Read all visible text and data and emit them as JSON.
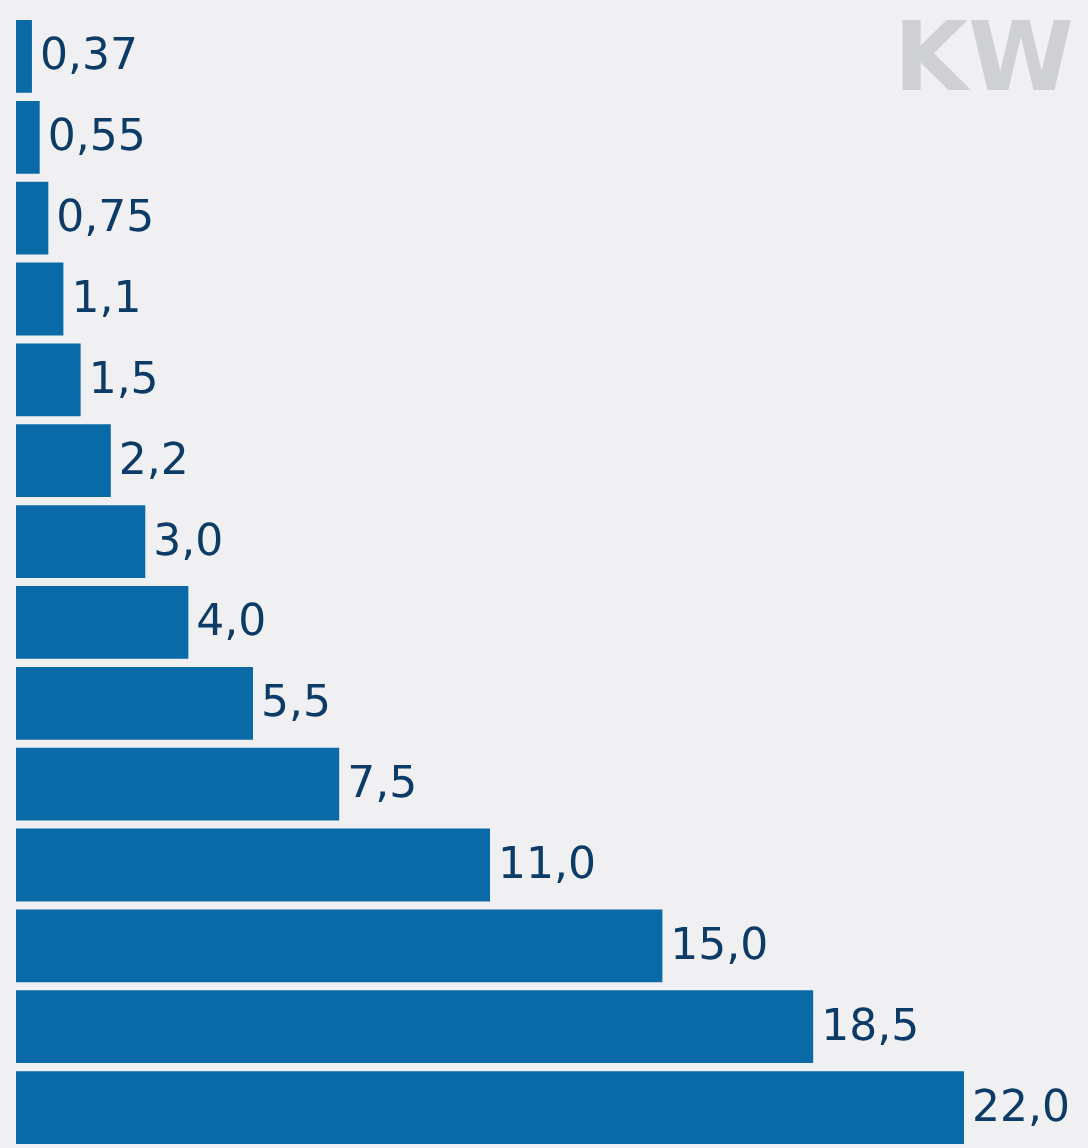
{
  "chart_data": {
    "type": "bar",
    "orientation": "horizontal",
    "title": "KW",
    "categories": [
      null,
      null,
      null,
      null,
      null,
      null,
      null,
      null,
      null,
      null,
      null,
      null,
      null,
      null
    ],
    "values": [
      0.37,
      0.55,
      0.75,
      1.1,
      1.5,
      2.2,
      3.0,
      4.0,
      5.5,
      7.5,
      11.0,
      15.0,
      18.5,
      22.0
    ],
    "value_labels": [
      "0,37",
      "0,55",
      "0,75",
      "1,1",
      "1,5",
      "2,2",
      "3,0",
      "4,0",
      "5,5",
      "7,5",
      "11,0",
      "15,0",
      "18,5",
      "22,0"
    ],
    "color": "#0a6aa8"
  }
}
